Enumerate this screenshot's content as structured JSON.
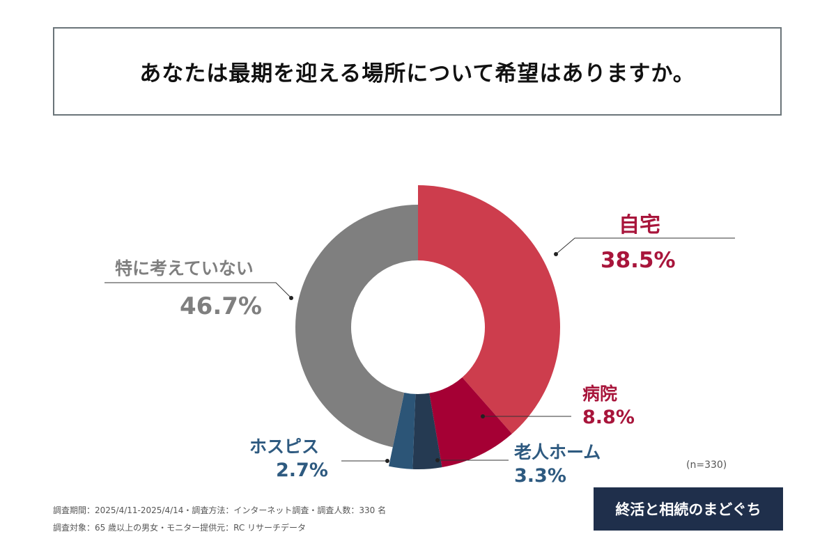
{
  "title": "あなたは最期を迎える場所について希望はありますか。",
  "chart_data": {
    "type": "pie",
    "title": "あなたは最期を迎える場所について希望はありますか。",
    "slices": [
      {
        "label": "自宅",
        "value": 38.5,
        "display": "38.5%",
        "color": "#cd3d4d",
        "text_color": "#a8153b"
      },
      {
        "label": "病院",
        "value": 8.8,
        "display": "8.8%",
        "color": "#a50034",
        "text_color": "#a8153b"
      },
      {
        "label": "老人ホーム",
        "value": 3.3,
        "display": "3.3%",
        "color": "#253a52",
        "text_color": "#2e5a80"
      },
      {
        "label": "ホスピス",
        "value": 2.7,
        "display": "2.7%",
        "color": "#2c5577",
        "text_color": "#2e5a80"
      },
      {
        "label": "特に考えていない",
        "value": 46.7,
        "display": "46.7%",
        "color": "#7f7f7f",
        "text_color": "#7f7f7f"
      }
    ],
    "donut": true,
    "sample_size": "(n=330)"
  },
  "footer": {
    "line1": "調査期間：2025/4/11-2025/4/14・調査方法：インターネット調査・調査人数：330 名",
    "line2": "調査対象：65 歳以上の男女・モニター提供元：RC リサーチデータ"
  },
  "logo": "終活と相続のまどぐち"
}
